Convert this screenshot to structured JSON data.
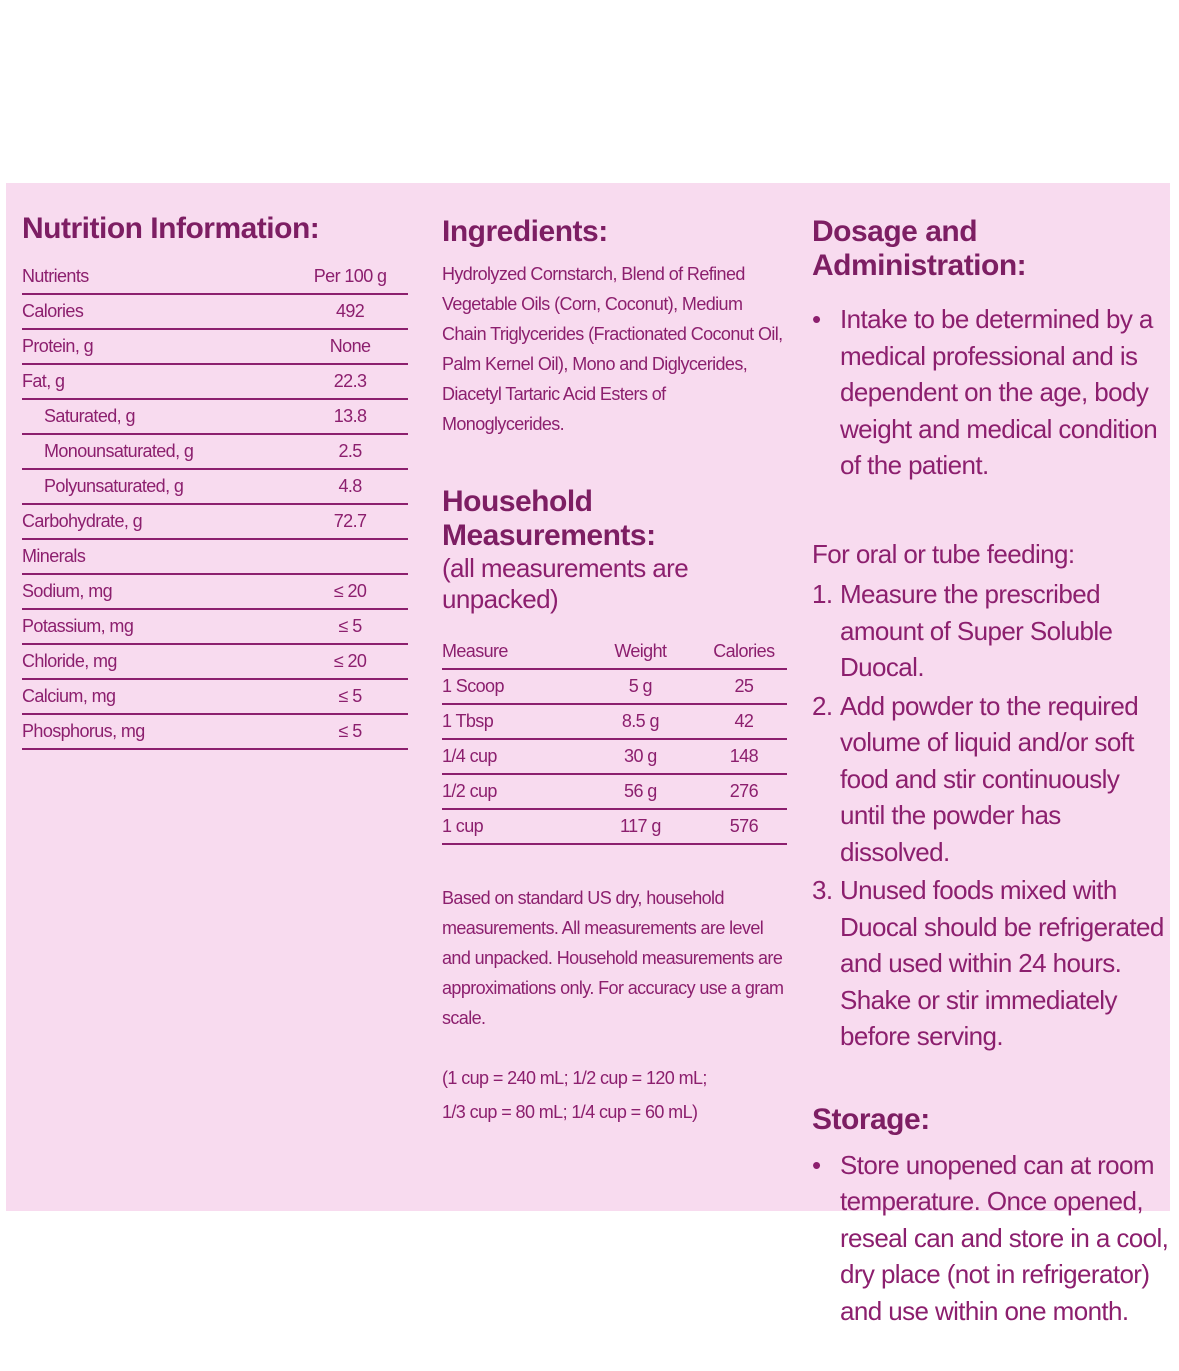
{
  "nutrition": {
    "title": "Nutrition Information:",
    "header": [
      "Nutrients",
      "Per 100 g"
    ],
    "rows": [
      [
        "Calories",
        "492"
      ],
      [
        "Protein, g",
        "None"
      ],
      [
        "Fat, g",
        "22.3"
      ],
      [
        "Saturated, g",
        "13.8"
      ],
      [
        "Monounsaturated, g",
        "2.5"
      ],
      [
        "Polyunsaturated, g",
        "4.8"
      ],
      [
        "Carbohydrate, g",
        "72.7"
      ],
      [
        "Minerals",
        ""
      ],
      [
        "Sodium, mg",
        "≤ 20"
      ],
      [
        "Potassium, mg",
        "≤ 5"
      ],
      [
        "Chloride, mg",
        "≤ 20"
      ],
      [
        "Calcium, mg",
        "≤ 5"
      ],
      [
        "Phosphorus, mg",
        "≤ 5"
      ]
    ]
  },
  "ingredients": {
    "title": "Ingredients:",
    "text": "Hydrolyzed Cornstarch, Blend of Refined Vegetable Oils (Corn, Coconut), Medium Chain Triglycerides (Fractionated Coconut Oil, Palm Kernel Oil), Mono and Diglycerides, Diacetyl Tartaric Acid Esters of Monoglycerides."
  },
  "household": {
    "title": "Household Measurements:",
    "subtitle": "(all measurements are unpacked)",
    "header": [
      "Measure",
      "Weight",
      "Calories"
    ],
    "rows": [
      [
        "1 Scoop",
        "5 g",
        "25"
      ],
      [
        "1 Tbsp",
        "8.5 g",
        "42"
      ],
      [
        "1/4 cup",
        "30 g",
        "148"
      ],
      [
        "1/2 cup",
        "56 g",
        "276"
      ],
      [
        "1 cup",
        "117 g",
        "576"
      ]
    ],
    "note": "Based on standard US dry, household measurements. All measurements are level and unpacked. Household measurements are approximations only. For accuracy use a gram scale.",
    "conversions": [
      "(1 cup = 240 mL; 1/2 cup = 120 mL;",
      "1/3 cup = 80 mL; 1/4 cup = 60 mL)"
    ]
  },
  "dosage": {
    "title": "Dosage and Administration:",
    "bullet": "Intake to be determined by a medical professional and is dependent on the age, body weight and medical condition of the patient.",
    "feeding_title": "For oral or tube feeding:",
    "steps": [
      [
        "1.",
        "Measure the prescribed amount of Super Soluble Duocal."
      ],
      [
        "2.",
        "Add powder to the required volume of liquid and/or soft food and stir continuously until the powder has dissolved."
      ],
      [
        "3.",
        "Unused foods mixed with Duocal should be refrigerated and used within 24 hours. Shake or stir immediately before serving."
      ]
    ]
  },
  "storage": {
    "title": "Storage:",
    "bullet": "Store unopened can at room temperature. Once opened, reseal can and store in a cool, dry place (not in refrigerator) and use within one month."
  }
}
